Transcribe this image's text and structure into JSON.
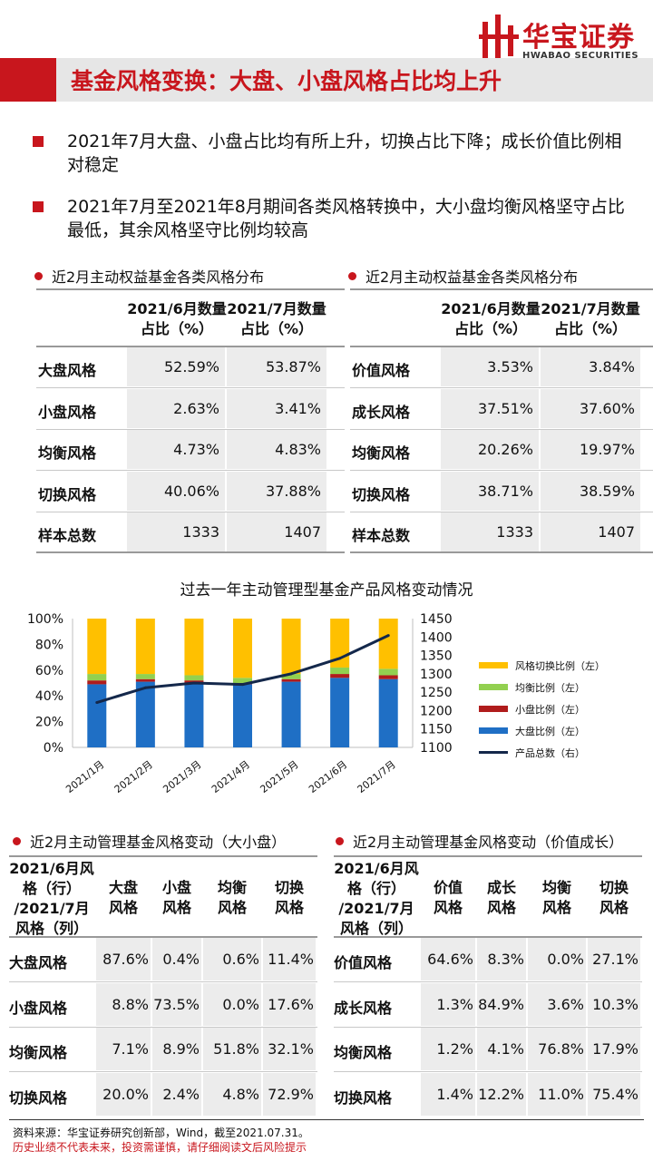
{
  "brand": {
    "name_cn": "华宝证券",
    "name_en": "HWABAO SECURITIES"
  },
  "page_title": "基金风格变换：大盘、小盘风格占比均上升",
  "bullets": [
    "2021年7月大盘、小盘占比均有所上升，切换占比下降；成长价值比例相对稳定",
    "2021年7月至2021年8月期间各类风格转换中，大小盘均衡风格坚守占比最低，其余风格坚守比例均较高"
  ],
  "table_size": {
    "title": "近2月主动权益基金各类风格分布",
    "headers": [
      "2021/6月数量占比（%）",
      "2021/7月数量占比（%）"
    ],
    "rows": [
      {
        "label": "大盘风格",
        "jun": "52.59%",
        "jul": "53.87%"
      },
      {
        "label": "小盘风格",
        "jun": "2.63%",
        "jul": "3.41%"
      },
      {
        "label": "均衡风格",
        "jun": "4.73%",
        "jul": "4.83%"
      },
      {
        "label": "切换风格",
        "jun": "40.06%",
        "jul": "37.88%"
      },
      {
        "label": "样本总数",
        "jun": "1333",
        "jul": "1407"
      }
    ]
  },
  "table_value": {
    "title": "近2月主动权益基金各类风格分布",
    "headers": [
      "2021/6月数量占比（%）",
      "2021/7月数量占比（%）"
    ],
    "rows": [
      {
        "label": "价值风格",
        "jun": "3.53%",
        "jul": "3.84%"
      },
      {
        "label": "成长风格",
        "jun": "37.51%",
        "jul": "37.60%"
      },
      {
        "label": "均衡风格",
        "jun": "20.26%",
        "jul": "19.97%"
      },
      {
        "label": "切换风格",
        "jun": "38.71%",
        "jul": "38.59%"
      },
      {
        "label": "样本总数",
        "jun": "1333",
        "jul": "1407"
      }
    ]
  },
  "chart_data": {
    "type": "bar",
    "stacked": true,
    "title": "过去一年主动管理型基金产品风格变动情况",
    "categories": [
      "2021/1月",
      "2021/2月",
      "2021/3月",
      "2021/4月",
      "2021/5月",
      "2021/6月",
      "2021/7月"
    ],
    "series": [
      {
        "name": "大盘比例（左）",
        "axis": "left",
        "color": "#1f6fc5",
        "values": [
          49,
          51,
          50,
          49,
          51,
          54,
          53
        ]
      },
      {
        "name": "小盘比例（左）",
        "axis": "left",
        "color": "#b01c1c",
        "values": [
          3,
          2,
          2,
          1,
          2,
          3,
          3
        ]
      },
      {
        "name": "均衡比例（左）",
        "axis": "left",
        "color": "#92d050",
        "values": [
          5,
          4,
          4,
          4,
          4,
          5,
          5
        ]
      },
      {
        "name": "风格切换比例（左）",
        "axis": "left",
        "color": "#ffc000",
        "values": [
          43,
          43,
          44,
          46,
          43,
          38,
          39
        ]
      },
      {
        "name": "产品总数（右）",
        "axis": "right",
        "type": "line",
        "color": "#14284b",
        "values": [
          1222,
          1262,
          1275,
          1271,
          1300,
          1342,
          1404
        ]
      }
    ],
    "y_left": {
      "ticks": [
        "0%",
        "20%",
        "40%",
        "60%",
        "80%",
        "100%"
      ],
      "min": 0,
      "max": 100
    },
    "y_right": {
      "ticks": [
        "1100",
        "1150",
        "1200",
        "1250",
        "1300",
        "1350",
        "1400",
        "1450"
      ],
      "min": 1100,
      "max": 1450
    },
    "legend_order": [
      "风格切换比例（左）",
      "均衡比例（左）",
      "小盘比例（左）",
      "大盘比例（左）",
      "产品总数（右）"
    ],
    "legend_position": "right"
  },
  "matrix_size": {
    "title": "近2月主动管理基金风格变动（大小盘）",
    "corner": [
      "2021/6月风",
      "格（行）",
      "/2021/7月",
      "风格（列）"
    ],
    "cols": [
      [
        "大盘",
        "风格"
      ],
      [
        "小盘",
        "风格"
      ],
      [
        "均衡",
        "风格"
      ],
      [
        "切换",
        "风格"
      ]
    ],
    "rows": [
      {
        "label": "大盘风格",
        "vals": [
          "87.6%",
          "0.4%",
          "0.6%",
          "11.4%"
        ]
      },
      {
        "label": "小盘风格",
        "vals": [
          "8.8%",
          "73.5%",
          "0.0%",
          "17.6%"
        ]
      },
      {
        "label": "均衡风格",
        "vals": [
          "7.1%",
          "8.9%",
          "51.8%",
          "32.1%"
        ]
      },
      {
        "label": "切换风格",
        "vals": [
          "20.0%",
          "2.4%",
          "4.8%",
          "72.9%"
        ]
      }
    ]
  },
  "matrix_value": {
    "title": "近2月主动管理基金风格变动（价值成长）",
    "corner": [
      "2021/6月风",
      "格（行）",
      "/2021/7月",
      "风格（列）"
    ],
    "cols": [
      [
        "价值",
        "风格"
      ],
      [
        "成长",
        "风格"
      ],
      [
        "均衡",
        "风格"
      ],
      [
        "切换",
        "风格"
      ]
    ],
    "rows": [
      {
        "label": "价值风格",
        "vals": [
          "64.6%",
          "8.3%",
          "0.0%",
          "27.1%"
        ]
      },
      {
        "label": "成长风格",
        "vals": [
          "1.3%",
          "84.9%",
          "3.6%",
          "10.3%"
        ]
      },
      {
        "label": "均衡风格",
        "vals": [
          "1.2%",
          "4.1%",
          "76.8%",
          "17.9%"
        ]
      },
      {
        "label": "切换风格",
        "vals": [
          "1.4%",
          "12.2%",
          "11.0%",
          "75.4%"
        ]
      }
    ]
  },
  "footer": {
    "source": "资料来源：华宝证券研究创新部，Wind，截至2021.07.31。",
    "disclaimer": "历史业绩不代表未来，投资需谨慎，请仔细阅读文后风险提示"
  }
}
